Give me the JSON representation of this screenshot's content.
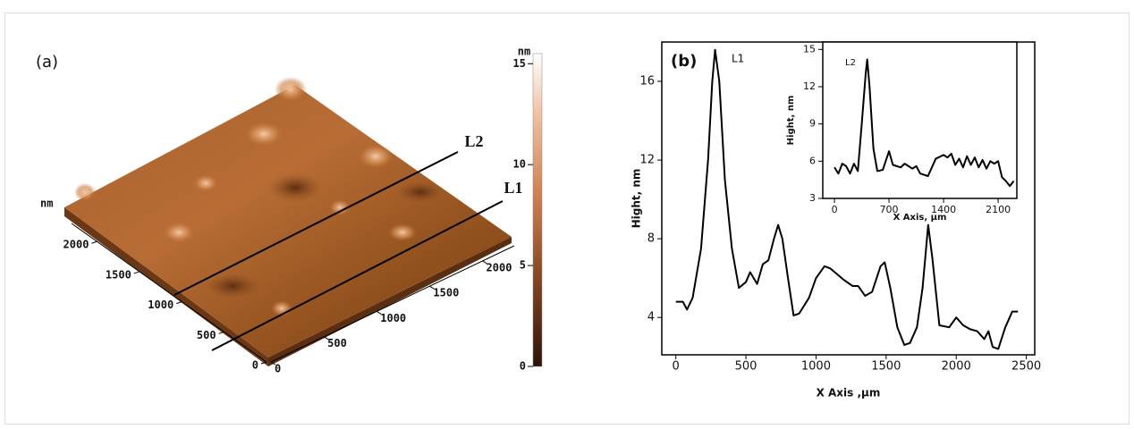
{
  "panel_a": {
    "label": "(a)",
    "axis_unit": "nm",
    "xlim": [
      0,
      2300
    ],
    "ylim": [
      0,
      2300
    ],
    "xticks": [
      0,
      500,
      1000,
      1500,
      2000
    ],
    "yticks": [
      0,
      500,
      1000,
      1500,
      2000
    ],
    "lines": [
      "L1",
      "L2"
    ],
    "colorbar": {
      "title": "nm",
      "lim": [
        0,
        15.5
      ],
      "ticks": [
        0,
        5,
        10,
        15
      ]
    }
  },
  "chart_data": [
    {
      "type": "line",
      "panel_label": "(b)",
      "annotation": "L1",
      "xlabel": "X Axis ,μm",
      "ylabel": "Hight, nm",
      "color": "#000000",
      "xlim": [
        -100,
        2560
      ],
      "ylim": [
        2.1,
        18
      ],
      "xticks": [
        0,
        500,
        1000,
        1500,
        2000,
        2500
      ],
      "yticks": [
        4,
        8,
        12,
        16
      ],
      "x": [
        0,
        50,
        80,
        120,
        180,
        230,
        260,
        280,
        310,
        350,
        400,
        450,
        500,
        530,
        580,
        620,
        660,
        700,
        730,
        760,
        800,
        840,
        880,
        950,
        1000,
        1060,
        1100,
        1200,
        1260,
        1300,
        1350,
        1400,
        1460,
        1490,
        1530,
        1580,
        1630,
        1670,
        1720,
        1760,
        1800,
        1830,
        1880,
        1950,
        2000,
        2050,
        2100,
        2150,
        2200,
        2230,
        2260,
        2300,
        2350,
        2400,
        2440
      ],
      "values": [
        4.8,
        4.8,
        4.4,
        5.0,
        7.5,
        12,
        16,
        17.6,
        16,
        11,
        7.5,
        5.5,
        5.8,
        6.3,
        5.7,
        6.7,
        6.9,
        8.0,
        8.7,
        8.0,
        6.0,
        4.1,
        4.2,
        5.0,
        6.0,
        6.6,
        6.5,
        5.9,
        5.6,
        5.6,
        5.1,
        5.3,
        6.6,
        6.8,
        5.5,
        3.5,
        2.6,
        2.7,
        3.5,
        5.5,
        8.7,
        7.0,
        3.6,
        3.5,
        4.0,
        3.6,
        3.4,
        3.3,
        2.9,
        3.3,
        2.5,
        2.4,
        3.5,
        4.3,
        4.3
      ]
    },
    {
      "type": "line",
      "annotation": "L2",
      "xlabel": "X Axis, μm",
      "ylabel": "Hight, nm",
      "color": "#000000",
      "xlim": [
        -150,
        2340
      ],
      "ylim": [
        3,
        15.6
      ],
      "xticks": [
        0,
        700,
        1400,
        2100
      ],
      "yticks": [
        3,
        6,
        9,
        12,
        15
      ],
      "x": [
        0,
        50,
        100,
        150,
        200,
        250,
        300,
        350,
        400,
        420,
        450,
        500,
        550,
        620,
        700,
        750,
        850,
        900,
        1000,
        1050,
        1100,
        1200,
        1300,
        1400,
        1450,
        1500,
        1550,
        1600,
        1650,
        1700,
        1750,
        1800,
        1850,
        1900,
        1950,
        2000,
        2050,
        2100,
        2150,
        2200,
        2250,
        2300
      ],
      "values": [
        5.5,
        5.0,
        5.8,
        5.6,
        5.0,
        5.8,
        5.2,
        9,
        13,
        14.2,
        12,
        7,
        5.2,
        5.3,
        6.8,
        5.7,
        5.5,
        5.8,
        5.4,
        5.6,
        5.0,
        4.8,
        6.2,
        6.5,
        6.3,
        6.6,
        5.7,
        6.2,
        5.5,
        6.4,
        5.7,
        6.3,
        5.5,
        6.1,
        5.4,
        6.0,
        5.8,
        6.0,
        4.7,
        4.4,
        4.0,
        4.4
      ]
    }
  ]
}
